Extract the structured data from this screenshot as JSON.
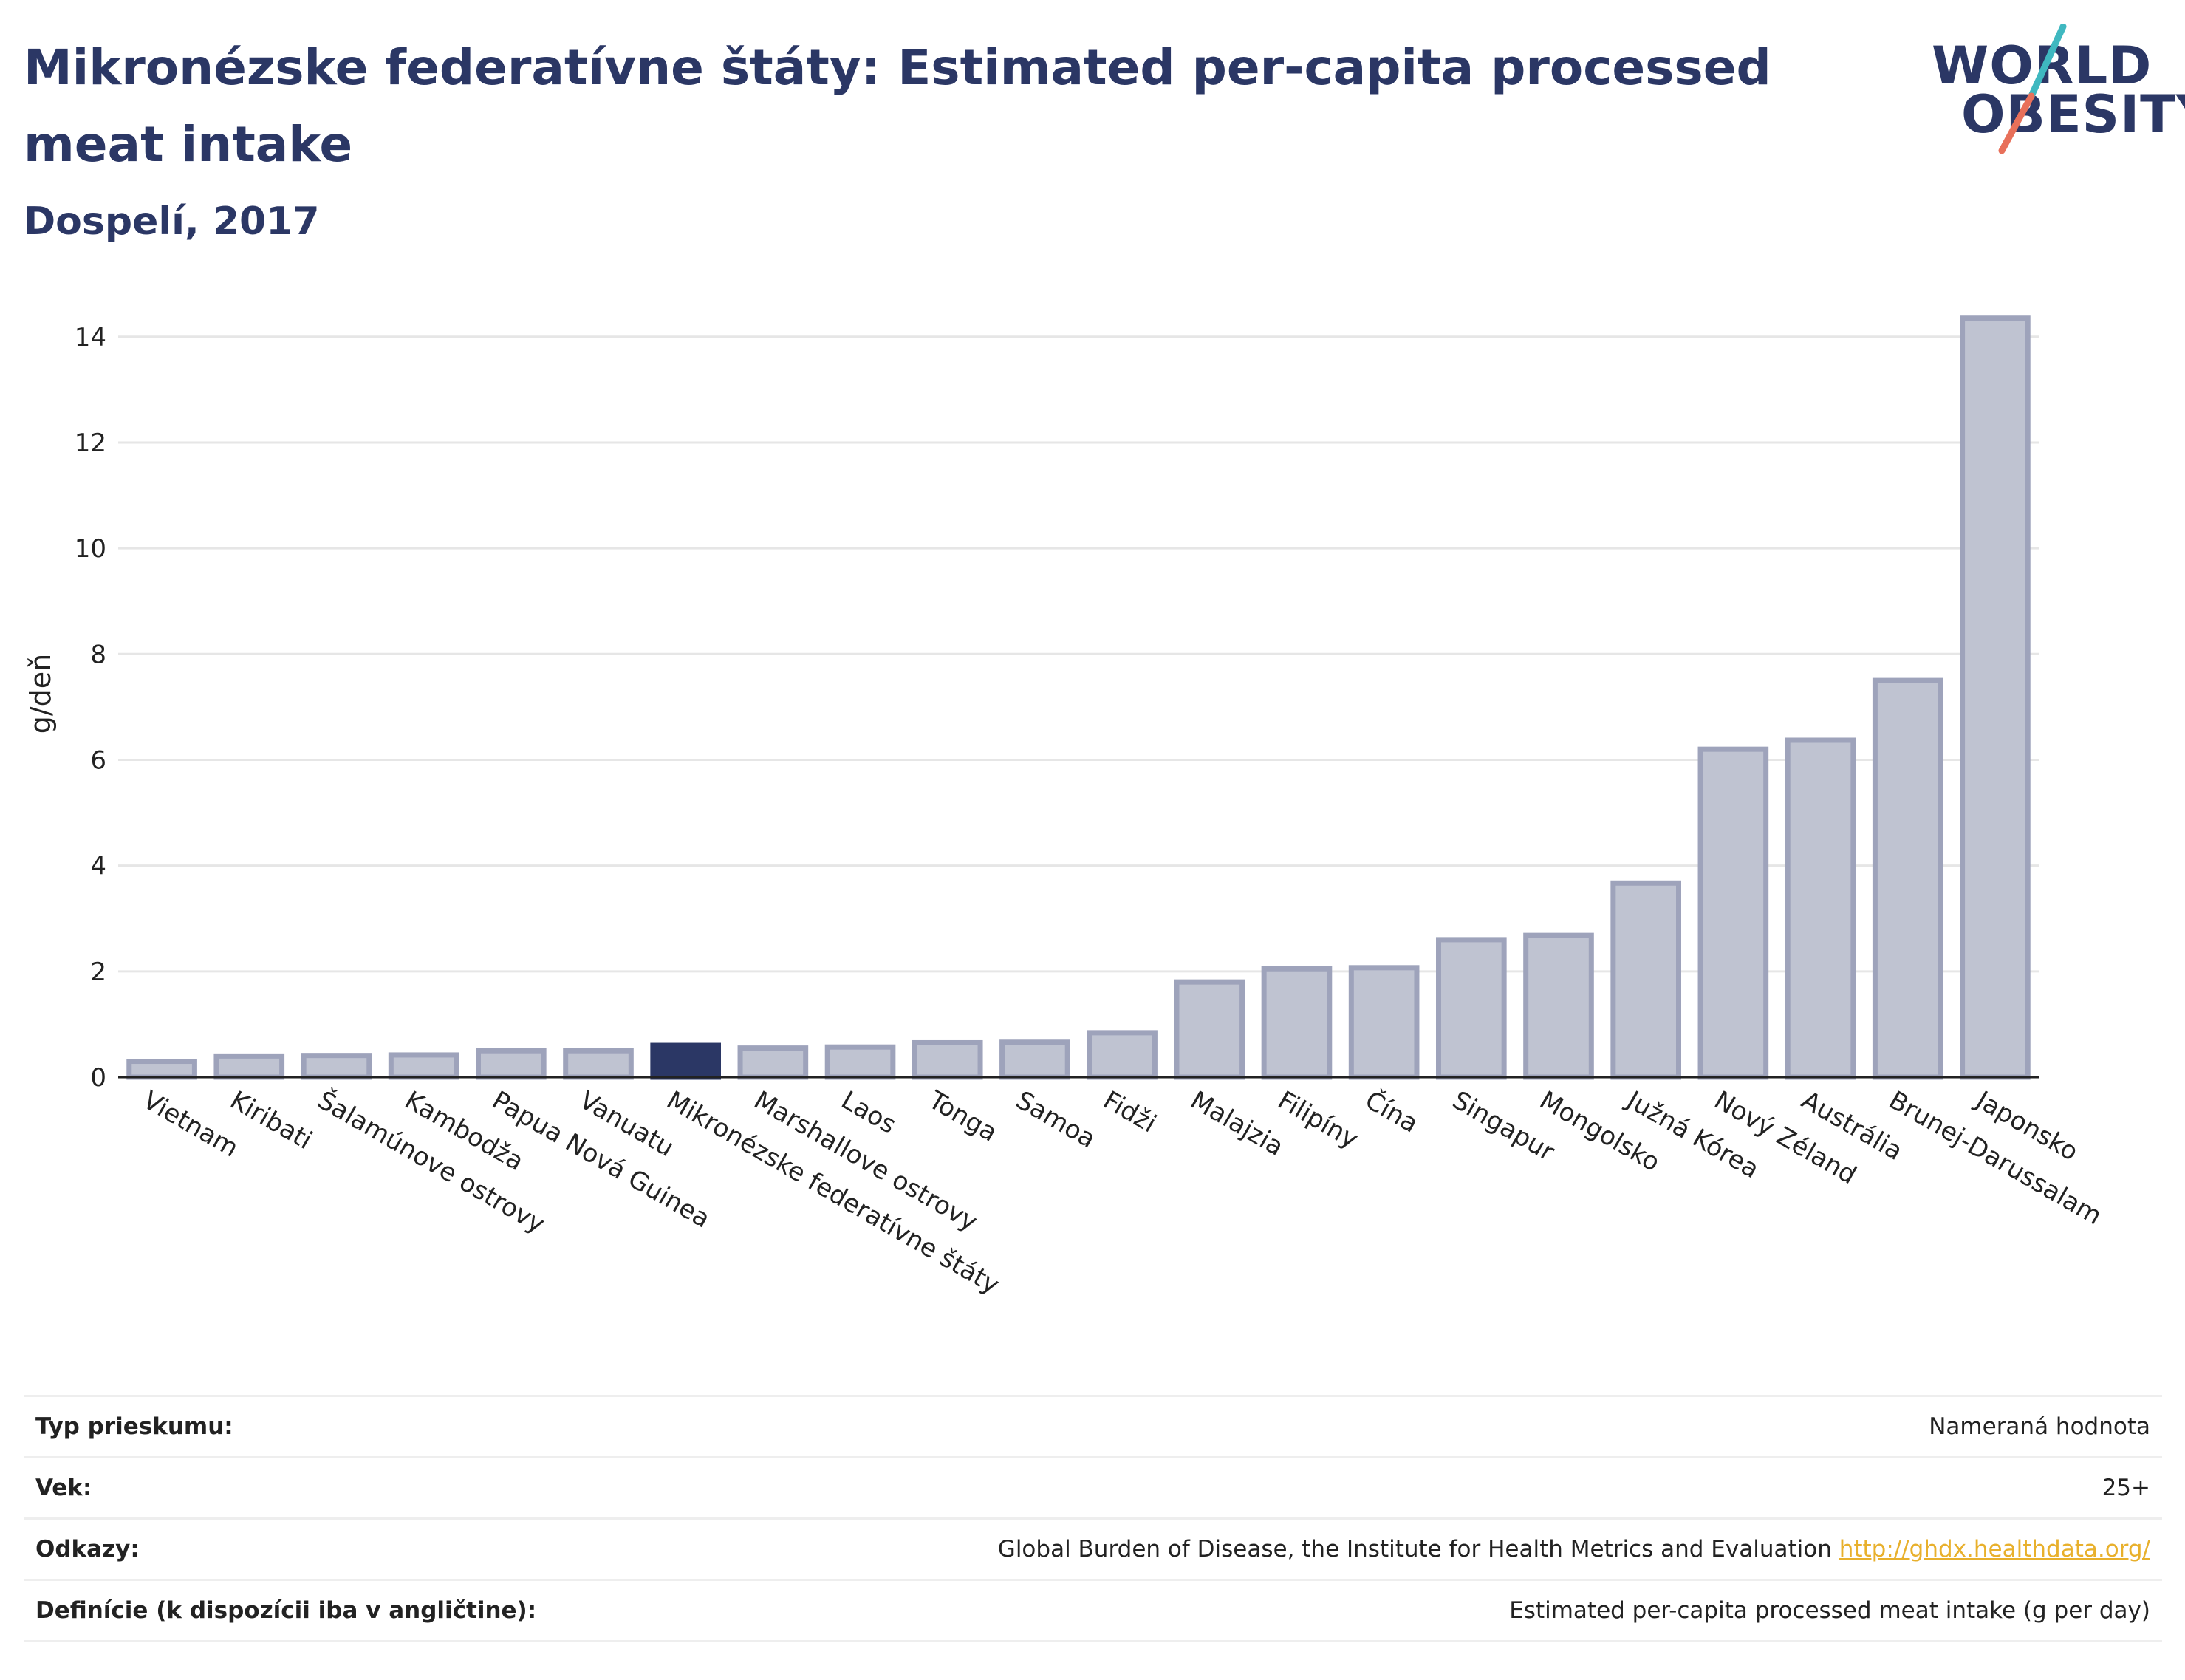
{
  "header": {
    "title": "Mikronézske federatívne štáty: Estimated per-capita processed meat intake",
    "subtitle": "Dospelí, 2017"
  },
  "logo": {
    "line1": "WORLD",
    "line2": "OBESITY",
    "accent_teal": "#3fb8c0",
    "accent_coral": "#e8705a"
  },
  "chart_data": {
    "type": "bar",
    "title": "Mikronézske federatívne štáty: Estimated per-capita processed meat intake",
    "subtitle": "Dospelí, 2017",
    "ylabel": "g/deň",
    "xlabel": "",
    "ylim": [
      0,
      14.5
    ],
    "yticks": [
      0,
      2,
      4,
      6,
      8,
      10,
      12,
      14
    ],
    "grid": true,
    "highlight": "Mikronézske federatívne štáty",
    "colors": {
      "default": "#bfc3d1",
      "default_stroke": "#9ea3bb",
      "highlight": "#2b3765"
    },
    "categories": [
      "Vietnam",
      "Kiribati",
      "Šalamúnove ostrovy",
      "Kambodža",
      "Papua Nová Guinea",
      "Vanuatu",
      "Mikronézske federatívne štáty",
      "Marshallove ostrovy",
      "Laos",
      "Tonga",
      "Samoa",
      "Fidži",
      "Malajzia",
      "Filipíny",
      "Čína",
      "Singapur",
      "Mongolsko",
      "Južná Kórea",
      "Nový Zéland",
      "Austrália",
      "Brunej-Darussalam",
      "Japonsko"
    ],
    "values": [
      0.3,
      0.4,
      0.41,
      0.42,
      0.5,
      0.5,
      0.6,
      0.55,
      0.57,
      0.65,
      0.66,
      0.84,
      1.8,
      2.05,
      2.07,
      2.6,
      2.68,
      3.67,
      6.2,
      6.37,
      7.5,
      14.35
    ]
  },
  "meta": {
    "rows": [
      {
        "label": "Typ prieskumu:",
        "value": "Nameraná hodnota"
      },
      {
        "label": "Vek:",
        "value": "25+"
      },
      {
        "label": "Odkazy:",
        "value": "Global Burden of Disease, the Institute for Health Metrics and Evaluation",
        "link": "http://ghdx.healthdata.org/"
      },
      {
        "label": "Definície (k dispozícii iba v angličtine):",
        "value": "Estimated per-capita processed meat intake (g per day)"
      }
    ]
  }
}
